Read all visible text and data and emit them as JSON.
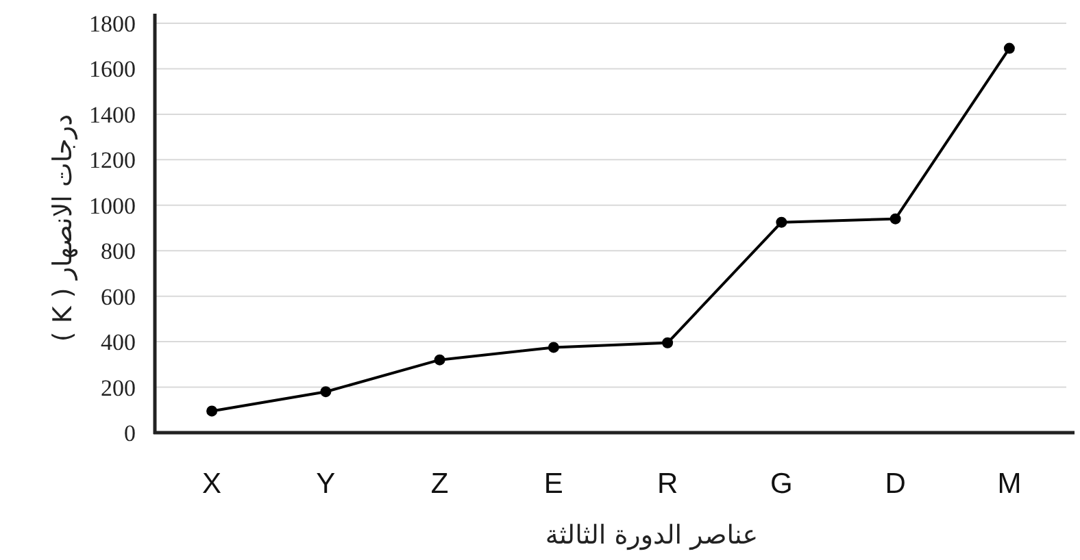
{
  "chart_data": {
    "type": "line",
    "xlabel": "عناصر الدورة الثالثة",
    "ylabel": "درجات الانصهار  ( K )",
    "categories": [
      "X",
      "Y",
      "Z",
      "E",
      "R",
      "G",
      "D",
      "M"
    ],
    "series": [
      {
        "color": "#000000",
        "values": [
          95,
          180,
          320,
          375,
          395,
          925,
          940,
          1690
        ]
      }
    ],
    "ylim": [
      0,
      1800
    ],
    "yticks": [
      0,
      200,
      400,
      600,
      800,
      1000,
      1200,
      1400,
      1600,
      1800
    ],
    "grid": "y",
    "marker": "circle",
    "line_style": "solid"
  }
}
